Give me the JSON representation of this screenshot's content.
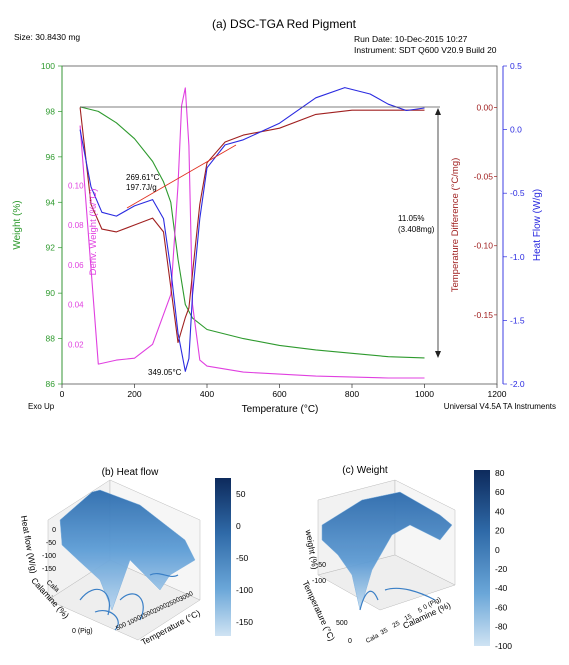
{
  "top": {
    "title": "(a) DSC-TGA Red Pigment",
    "size_label": "Size: 30.8430 mg",
    "run_date": "Run Date: 10-Dec-2015 10:27",
    "instrument": "Instrument: SDT Q600 V20.9 Build 20",
    "exo_up": "Exo Up",
    "universal": "Universal V4.5A TA Instruments",
    "xlabel": "Temperature (°C)",
    "ylabel_weight": "Weight (%)",
    "ylabel_deriv": "Deriv. Weight (%/°C)",
    "ylabel_tempdiff": "Temperature Difference (°C/mg)",
    "ylabel_heatflow": "Heat Flow (W/g)",
    "ann_peak1": "269.61°C",
    "ann_peak2": "197.7J/g",
    "ann_mass1": "11.05%",
    "ann_mass2": "(3.408mg)",
    "ann_min": "349.05°C"
  },
  "bottom": {
    "heatflow_title": "(b) Heat flow",
    "heatflow_zlabel": "Heat flow (W/g)",
    "heatflow_xlabel": "Temperature (°C)",
    "heatflow_ylabel": "Calamine (%)",
    "heatflow_ticks_z": [
      "0",
      "-50",
      "-100",
      "-150"
    ],
    "heatflow_ticks_x": [
      "500",
      "1000",
      "1500",
      "2000",
      "2500",
      "3000"
    ],
    "heatflow_ticks_y": [
      "Cala",
      "0 (Pig)"
    ],
    "heatflow_colorbar": [
      "50",
      "0",
      "-50",
      "-100",
      "-150"
    ],
    "weight_title": "(c) Weight",
    "weight_zlabel": "weight (%)",
    "weight_xlabel": "Temperature (°C)",
    "weight_ylabel": "Calamine (%)",
    "weight_ticks_z": [
      "-50",
      "-100"
    ],
    "weight_ticks_temp": [
      "0",
      "500"
    ],
    "weight_ticks_cal": [
      "Cala",
      "35",
      "25",
      "15",
      "5",
      "0 (Pig)"
    ],
    "weight_colorbar": [
      "80",
      "60",
      "40",
      "20",
      "0",
      "-20",
      "-40",
      "-60",
      "-80",
      "-100"
    ]
  },
  "chart_data": [
    {
      "type": "line",
      "title": "(a) DSC-TGA Red Pigment",
      "xlabel": "Temperature (°C)",
      "xlim": [
        0,
        1200
      ],
      "x_ticks": [
        0,
        200,
        400,
        600,
        800,
        1000,
        1200
      ],
      "axes": {
        "weight": {
          "label": "Weight (%)",
          "range": [
            86,
            100
          ],
          "ticks": [
            86,
            88,
            90,
            92,
            94,
            96,
            98,
            100
          ],
          "color": "#2e9a2e"
        },
        "deriv_weight": {
          "label": "Deriv. Weight (%/°C)",
          "range": [
            0,
            0.16
          ],
          "ticks": [
            0.02,
            0.04,
            0.06,
            0.08,
            0.1
          ],
          "tick_labels": [
            "0.02",
            "0.04",
            "0.06",
            "0.08",
            "0.10"
          ],
          "color": "#e040e0"
        },
        "temp_diff": {
          "label": "Temperature Difference (°C/mg)",
          "range": [
            -0.2,
            0.03
          ],
          "ticks": [
            0.0,
            -0.05,
            -0.1,
            -0.15
          ],
          "tick_labels": [
            "0.00",
            "-0.05",
            "-0.10",
            "-0.15"
          ],
          "color": "#a02020"
        },
        "heat_flow": {
          "label": "Heat Flow (W/g)",
          "range": [
            -2.0,
            0.5
          ],
          "ticks": [
            0.5,
            0.0,
            -0.5,
            -1.0,
            -1.5,
            -2.0
          ],
          "tick_labels": [
            "0.5",
            "0.0",
            "-0.5",
            "-1.0",
            "-1.5",
            "-2.0"
          ],
          "color": "#2a2ae0"
        }
      },
      "series": [
        {
          "name": "Weight",
          "axis": "weight",
          "color": "#2e9a2e",
          "x": [
            50,
            100,
            150,
            200,
            250,
            280,
            300,
            320,
            340,
            360,
            400,
            500,
            600,
            700,
            800,
            900,
            1000
          ],
          "y": [
            98.2,
            98.0,
            97.5,
            96.8,
            95.8,
            94.9,
            94.0,
            91.5,
            89.5,
            88.9,
            88.4,
            88.0,
            87.7,
            87.5,
            87.35,
            87.2,
            87.15
          ]
        },
        {
          "name": "Deriv. Weight",
          "axis": "deriv_weight",
          "color": "#e040e0",
          "x": [
            50,
            100,
            150,
            200,
            250,
            300,
            320,
            330,
            340,
            350,
            360,
            380,
            400,
            500,
            700,
            900,
            1000
          ],
          "y": [
            0.13,
            0.01,
            0.012,
            0.013,
            0.02,
            0.045,
            0.1,
            0.14,
            0.149,
            0.12,
            0.04,
            0.012,
            0.009,
            0.006,
            0.004,
            0.003,
            0.003
          ]
        },
        {
          "name": "Temperature Difference",
          "axis": "temp_diff",
          "color": "#a02020",
          "x": [
            50,
            80,
            110,
            150,
            200,
            250,
            280,
            300,
            320,
            340,
            350,
            360,
            380,
            400,
            450,
            500,
            600,
            700,
            800,
            900,
            1000
          ],
          "y": [
            -0.0,
            -0.07,
            -0.088,
            -0.09,
            -0.085,
            -0.08,
            -0.09,
            -0.13,
            -0.17,
            -0.152,
            -0.145,
            -0.12,
            -0.07,
            -0.04,
            -0.025,
            -0.02,
            -0.015,
            -0.005,
            -0.002,
            -0.002,
            -0.002
          ]
        },
        {
          "name": "Heat Flow",
          "axis": "heat_flow",
          "color": "#2a2ae0",
          "x": [
            50,
            80,
            110,
            150,
            200,
            250,
            280,
            300,
            320,
            340,
            350,
            360,
            380,
            400,
            450,
            500,
            600,
            700,
            780,
            850,
            900,
            950,
            1000
          ],
          "y": [
            0.0,
            -0.45,
            -0.65,
            -0.68,
            -0.6,
            -0.55,
            -0.7,
            -1.1,
            -1.6,
            -1.9,
            -1.8,
            -1.3,
            -0.7,
            -0.3,
            -0.12,
            -0.08,
            0.05,
            0.25,
            0.33,
            0.28,
            0.2,
            0.15,
            0.17
          ]
        }
      ],
      "annotations": [
        {
          "text": "269.61°C",
          "x": 269.61
        },
        {
          "text": "197.7J/g"
        },
        {
          "text": "11.05%"
        },
        {
          "text": "(3.408mg)"
        },
        {
          "text": "349.05°C",
          "x": 349.05
        }
      ]
    },
    {
      "type": "surface",
      "title": "(b) Heat flow",
      "xlabel": "Temperature (°C)",
      "ylabel": "Calamine (%)",
      "zlabel": "Heat flow (W/g)",
      "colorbar": {
        "range": [
          -170,
          60
        ],
        "ticks": [
          50,
          0,
          -50,
          -100,
          -150
        ]
      }
    },
    {
      "type": "surface",
      "title": "(c) Weight",
      "xlabel": "Temperature (°C)",
      "ylabel": "Calamine (%)",
      "zlabel": "weight (%)",
      "colorbar": {
        "range": [
          -105,
          80
        ],
        "ticks": [
          80,
          60,
          40,
          20,
          0,
          -20,
          -40,
          -60,
          -80,
          -100
        ]
      }
    }
  ]
}
